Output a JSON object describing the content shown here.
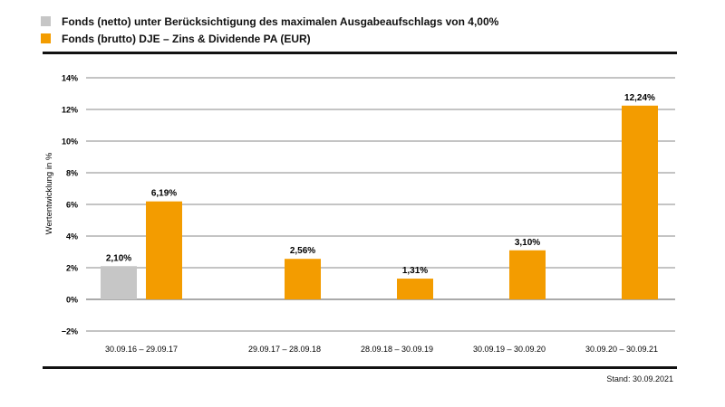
{
  "legend": [
    {
      "label": "Fonds (netto) unter Berücksichtigung des maximalen Ausgabeaufschlags von 4,00%",
      "color": "#c6c6c6"
    },
    {
      "label": "Fonds (brutto) DJE – Zins & Dividende PA (EUR)",
      "color": "#f39c00"
    }
  ],
  "footer": {
    "stand": "Stand: 30.09.2021"
  },
  "chart_data": {
    "type": "bar",
    "ylabel": "Wertentwicklung in %",
    "xlabel": "",
    "ylim": [
      -2,
      14
    ],
    "yticks": [
      -2,
      0,
      2,
      4,
      6,
      8,
      10,
      12,
      14
    ],
    "ytick_labels": [
      "−2%",
      "0%",
      "2%",
      "4%",
      "6%",
      "8%",
      "10%",
      "12%",
      "14%"
    ],
    "grid": true,
    "legend_position": "top-left",
    "categories": [
      "30.09.16 – 29.09.17",
      "29.09.17 – 28.09.18",
      "28.09.18 – 30.09.19",
      "30.09.19 – 30.09.20",
      "30.09.20 – 30.09.21"
    ],
    "series": [
      {
        "name": "Fonds (netto) unter Berücksichtigung des maximalen Ausgabeaufschlags von 4,00%",
        "color": "#c6c6c6",
        "values": [
          2.1,
          null,
          null,
          null,
          null
        ],
        "labels": [
          "2,10%",
          null,
          null,
          null,
          null
        ]
      },
      {
        "name": "Fonds (brutto) DJE – Zins & Dividende PA (EUR)",
        "color": "#f39c00",
        "values": [
          6.19,
          2.56,
          1.31,
          3.1,
          12.24
        ],
        "labels": [
          "6,19%",
          "2,56%",
          "1,31%",
          "3,10%",
          "12,24%"
        ]
      }
    ]
  }
}
